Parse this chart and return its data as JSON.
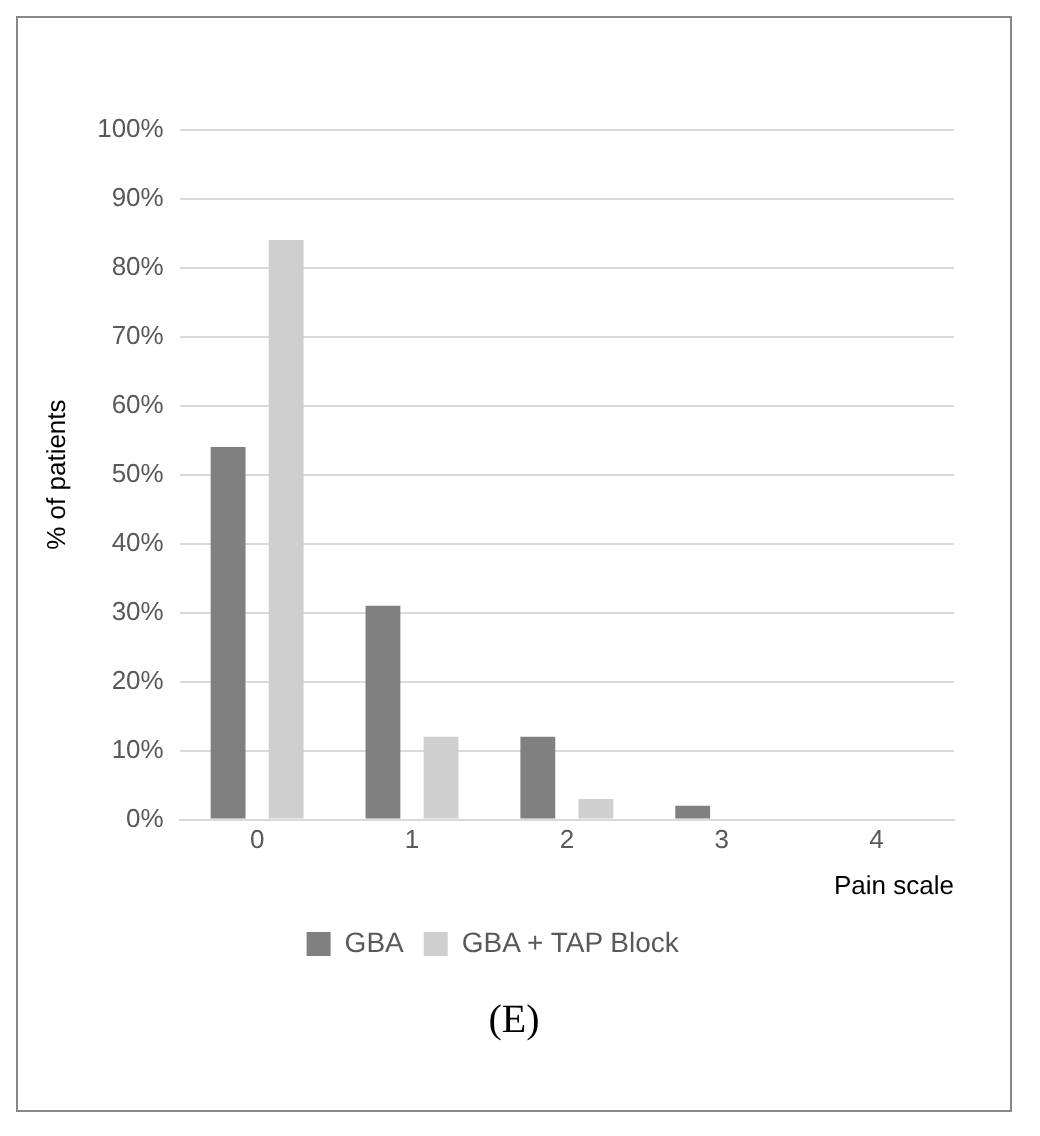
{
  "chart_data": {
    "type": "bar",
    "categories": [
      "0",
      "1",
      "2",
      "3",
      "4"
    ],
    "ylabel": "% of patients",
    "xlabel": "Pain scale",
    "series": [
      {
        "name": "GBA",
        "color": "#808080",
        "values": [
          54,
          31,
          12,
          2,
          0
        ]
      },
      {
        "name": "GBA + TAP Block",
        "color": "#d0cfd0",
        "values": [
          84,
          12,
          3,
          0,
          0
        ]
      }
    ],
    "ylim": [
      0,
      100
    ],
    "yticks": [
      {
        "value": 0,
        "label": "0%"
      },
      {
        "value": 10,
        "label": "10%"
      },
      {
        "value": 20,
        "label": "20%"
      },
      {
        "value": 30,
        "label": "30%"
      },
      {
        "value": 40,
        "label": "40%"
      },
      {
        "value": 50,
        "label": "50%"
      },
      {
        "value": 60,
        "label": "60%"
      },
      {
        "value": 70,
        "label": "70%"
      },
      {
        "value": 80,
        "label": "80%"
      },
      {
        "value": 90,
        "label": "90%"
      },
      {
        "value": 100,
        "label": "100%"
      }
    ],
    "grid": "y",
    "legend": "bottom",
    "annotations": [
      "(E)"
    ]
  }
}
